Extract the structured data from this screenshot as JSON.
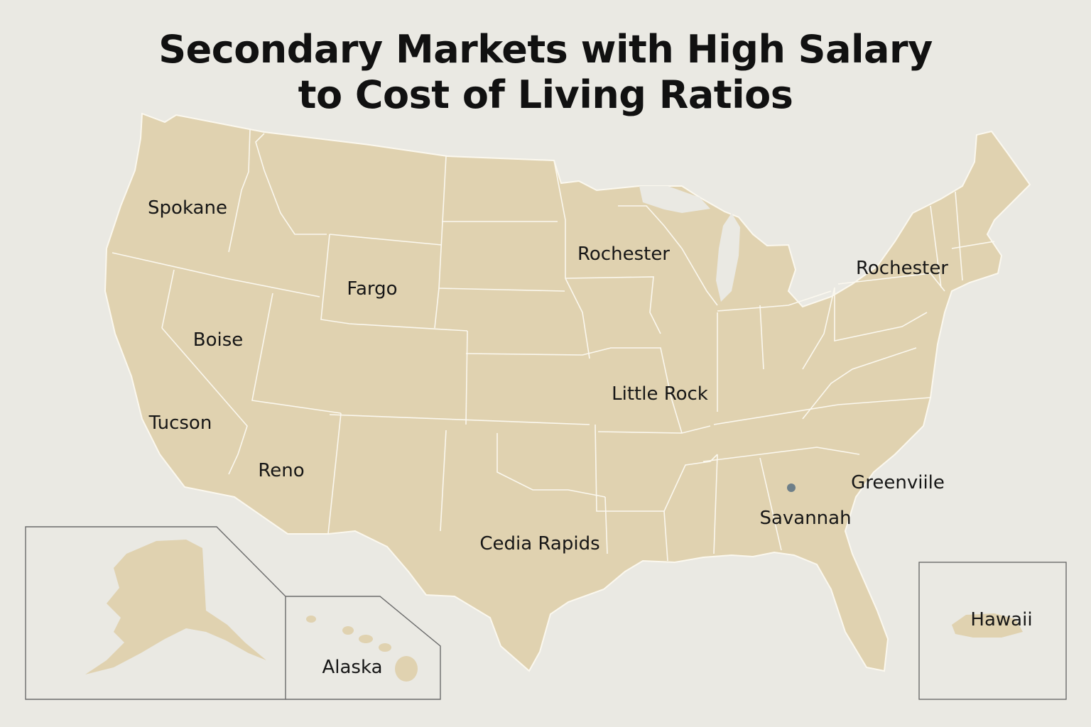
{
  "title": {
    "line1": "Secondary Markets with High Salary",
    "line2": "to Cost of Living Ratios"
  },
  "colors": {
    "background": "#eae9e3",
    "land": "#e0d2b0",
    "borders": "#fbf8ef",
    "inset_frame": "#6b6b6b",
    "marker": "#6e7f89",
    "text": "#161616"
  },
  "city_labels": [
    {
      "id": "spokane",
      "text": "Spokane"
    },
    {
      "id": "rochester-mn",
      "text": "Rochester"
    },
    {
      "id": "rochester-ny",
      "text": "Rochester"
    },
    {
      "id": "fargo",
      "text": "Fargo"
    },
    {
      "id": "boise",
      "text": "Boise"
    },
    {
      "id": "little-rock",
      "text": "Little Rock"
    },
    {
      "id": "tucson",
      "text": "Tucson"
    },
    {
      "id": "reno",
      "text": "Reno"
    },
    {
      "id": "greenville",
      "text": "Greenviile"
    },
    {
      "id": "savannah",
      "text": "Savannah"
    },
    {
      "id": "cedia-rapids",
      "text": "Cedia Rapids"
    }
  ],
  "insets": {
    "alaska_label": "Alaska",
    "hawaii_label": "Hawaii"
  },
  "marker": {
    "icon": "location-dot-icon",
    "label_ref": "Savannah"
  }
}
